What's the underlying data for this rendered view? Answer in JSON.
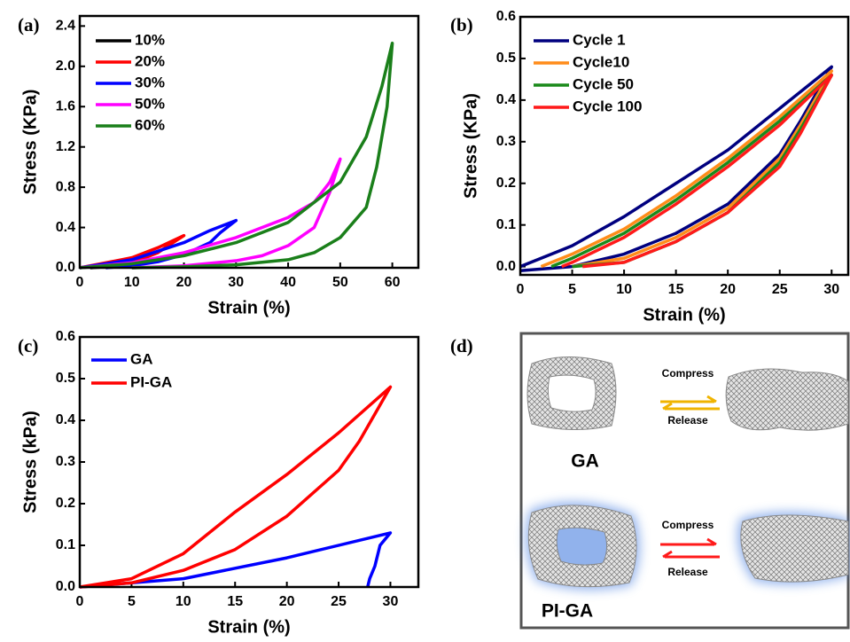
{
  "chart_data": [
    {
      "type": "line",
      "label": "(a)",
      "xlabel": "Strain (%)",
      "ylabel": "Stress (KPa)",
      "xlim": [
        0,
        65
      ],
      "ylim": [
        0,
        2.5
      ],
      "xticks": [
        0,
        10,
        20,
        30,
        40,
        50,
        60
      ],
      "yticks": [
        {
          "value": 0,
          "label": "0.0"
        },
        {
          "value": 0.4,
          "label": "0.4"
        },
        {
          "value": 0.8,
          "label": "0.8"
        },
        {
          "value": 1.2,
          "label": "1.2"
        },
        {
          "value": 1.6,
          "label": "1.6"
        },
        {
          "value": 2.0,
          "label": "2.0"
        },
        {
          "value": 2.4,
          "label": "2.4"
        }
      ],
      "legend": "top-left",
      "series": [
        {
          "name": "10%",
          "color": "#000000",
          "x": [
            0,
            5,
            10,
            8,
            5,
            2
          ],
          "values": [
            0,
            0.03,
            0.1,
            0.05,
            0.01,
            0
          ]
        },
        {
          "name": "20%",
          "color": "#ff0000",
          "x": [
            0,
            10,
            15,
            20,
            17,
            15,
            10,
            5
          ],
          "values": [
            0,
            0.1,
            0.2,
            0.32,
            0.22,
            0.15,
            0.05,
            0
          ]
        },
        {
          "name": "30%",
          "color": "#0000ff",
          "x": [
            0,
            10,
            20,
            25,
            30,
            27,
            25,
            20,
            15,
            10,
            5
          ],
          "values": [
            0,
            0.08,
            0.25,
            0.37,
            0.47,
            0.35,
            0.25,
            0.13,
            0.06,
            0.02,
            0
          ]
        },
        {
          "name": "50%",
          "color": "#ff00ff",
          "x": [
            0,
            10,
            20,
            30,
            40,
            45,
            48,
            50,
            48,
            45,
            40,
            35,
            30,
            20,
            10
          ],
          "values": [
            0,
            0.05,
            0.15,
            0.3,
            0.5,
            0.65,
            0.85,
            1.08,
            0.75,
            0.4,
            0.22,
            0.12,
            0.07,
            0.02,
            0
          ]
        },
        {
          "name": "60%",
          "color": "#1a7f1a",
          "x": [
            0,
            10,
            20,
            30,
            40,
            50,
            55,
            58,
            60,
            59,
            57,
            55,
            50,
            45,
            40,
            30,
            20,
            10
          ],
          "values": [
            0,
            0.04,
            0.12,
            0.25,
            0.45,
            0.85,
            1.3,
            1.8,
            2.23,
            1.6,
            1.0,
            0.6,
            0.3,
            0.15,
            0.08,
            0.03,
            0.01,
            0
          ]
        }
      ]
    },
    {
      "type": "line",
      "label": "(b)",
      "xlabel": "Strain (%)",
      "ylabel": "Stress (KPa)",
      "xlim": [
        0,
        31.6
      ],
      "ylim": [
        -0.02,
        0.6
      ],
      "xticks": [
        0,
        5,
        10,
        15,
        20,
        25,
        30
      ],
      "yticks": [
        {
          "value": 0,
          "label": "0.0"
        },
        0.1,
        0.2,
        0.3,
        0.4,
        0.5,
        0.6
      ],
      "legend": "top-left",
      "series": [
        {
          "name": "Cycle 1",
          "color": "#00007f",
          "x": [
            0,
            5,
            10,
            15,
            20,
            25,
            30,
            27,
            25,
            20,
            15,
            10,
            5,
            0
          ],
          "values": [
            0,
            0.05,
            0.12,
            0.2,
            0.28,
            0.38,
            0.48,
            0.35,
            0.27,
            0.15,
            0.08,
            0.03,
            0,
            -0.01
          ]
        },
        {
          "name": "Cycle10",
          "color": "#ff8c1a",
          "x": [
            2,
            5,
            10,
            15,
            20,
            25,
            30,
            27,
            25,
            20,
            15,
            10,
            5
          ],
          "values": [
            0,
            0.03,
            0.09,
            0.17,
            0.26,
            0.36,
            0.47,
            0.34,
            0.26,
            0.14,
            0.07,
            0.02,
            0
          ]
        },
        {
          "name": "Cycle 50",
          "color": "#1a8a1a",
          "x": [
            3,
            5,
            10,
            15,
            20,
            25,
            30,
            27,
            25,
            20,
            15,
            10,
            5
          ],
          "values": [
            0,
            0.02,
            0.08,
            0.16,
            0.25,
            0.35,
            0.46,
            0.33,
            0.25,
            0.13,
            0.06,
            0.01,
            0
          ]
        },
        {
          "name": "Cycle 100",
          "color": "#ff1a1a",
          "x": [
            4,
            5,
            10,
            15,
            20,
            25,
            30,
            27,
            25,
            20,
            15,
            10,
            6
          ],
          "values": [
            0,
            0.01,
            0.07,
            0.15,
            0.24,
            0.34,
            0.46,
            0.32,
            0.24,
            0.13,
            0.06,
            0.01,
            0
          ]
        }
      ]
    },
    {
      "type": "line",
      "label": "(c)",
      "xlabel": "Strain (%)",
      "ylabel": "Stress (kPa)",
      "xlim": [
        0,
        32.7
      ],
      "ylim": [
        0,
        0.6
      ],
      "xticks": [
        0,
        5,
        10,
        15,
        20,
        25,
        30
      ],
      "yticks": [
        {
          "value": 0,
          "label": "0.0"
        },
        0.1,
        0.2,
        0.3,
        0.4,
        0.5,
        0.6
      ],
      "legend": "top-left",
      "series": [
        {
          "name": "GA",
          "color": "#0000ff",
          "x": [
            0,
            10,
            20,
            30,
            29,
            28.5,
            28,
            27.8
          ],
          "values": [
            0,
            0.02,
            0.07,
            0.13,
            0.1,
            0.05,
            0.02,
            0
          ]
        },
        {
          "name": "PI-GA",
          "color": "#ff0000",
          "x": [
            0,
            5,
            10,
            15,
            20,
            25,
            30,
            27,
            25,
            20,
            15,
            10,
            5,
            0
          ],
          "values": [
            0,
            0.02,
            0.08,
            0.18,
            0.27,
            0.37,
            0.48,
            0.35,
            0.28,
            0.17,
            0.09,
            0.04,
            0.01,
            0
          ]
        }
      ]
    }
  ],
  "diagram": {
    "label": "(d)",
    "top": {
      "compress": "Compress",
      "release": "Release",
      "name": "GA"
    },
    "bottom": {
      "compress": "Compress",
      "release": "Release",
      "name": "PI-GA"
    }
  }
}
